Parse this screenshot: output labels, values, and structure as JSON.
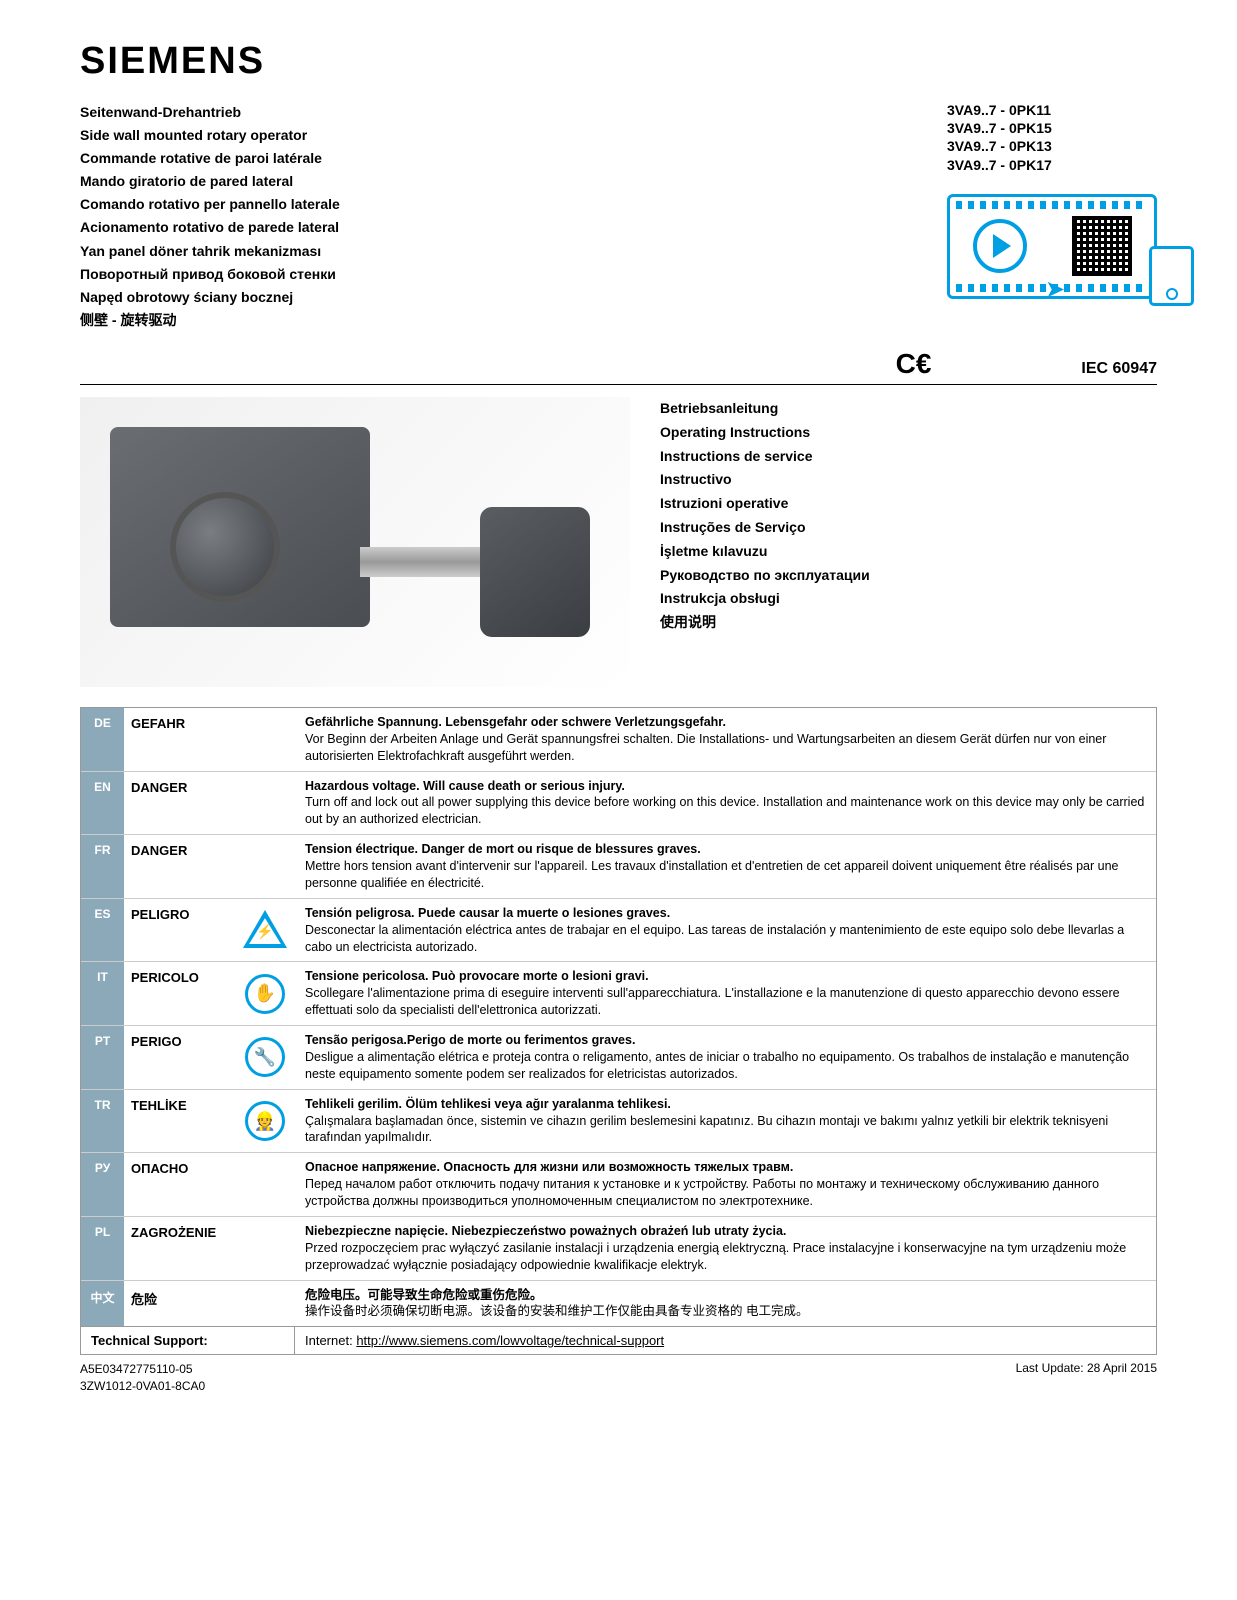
{
  "logo": "SIEMENS",
  "product_names": [
    "Seitenwand-Drehantrieb",
    "Side wall mounted rotary operator",
    "Commande rotative de paroi latérale",
    "Mando giratorio de pared lateral",
    "Comando rotativo per pannello laterale",
    "Acionamento rotativo de parede lateral",
    "Yan panel döner tahrik mekanizması",
    "Поворотный привод боковой стенки",
    "Napęd obrotowy ściany bocznej",
    "侧壁 - 旋转驱动"
  ],
  "part_numbers": [
    "3VA9..7 - 0PK11",
    "3VA9..7 - 0PK15",
    "3VA9..7 - 0PK13",
    "3VA9..7 - 0PK17"
  ],
  "ce": "C€",
  "iec": "IEC 60947",
  "instruction_labels": [
    "Betriebsanleitung",
    "Operating Instructions",
    "Instructions de service",
    "Instructivo",
    "Istruzioni operative",
    "Instruções de Serviço",
    "İşletme kılavuzu",
    "Руководство по эксплуатации",
    "Instrukcja obsługi",
    "使用说明"
  ],
  "warnings": [
    {
      "lang": "DE",
      "label": "GEFAHR",
      "heading": "Gefährliche Spannung. Lebensgefahr oder schwere Verletzungsgefahr.",
      "body": "Vor Beginn der Arbeiten Anlage und Gerät spannungsfrei schalten. Die Installations- und Wartungsarbeiten an diesem Gerät dürfen nur von einer autorisierten Elektrofachkraft ausgeführt werden."
    },
    {
      "lang": "EN",
      "label": "DANGER",
      "heading": "Hazardous voltage. Will cause death or serious injury.",
      "body": "Turn off and lock out all power supplying this device before working on this device. Installation and maintenance work on this device may only be carried out by an authorized electrician."
    },
    {
      "lang": "FR",
      "label": "DANGER",
      "heading": "Tension électrique. Danger de mort ou risque de blessures graves.",
      "body": "Mettre hors tension avant d'intervenir sur l'appareil. Les travaux d'installation et d'entretien de cet appareil doivent uniquement être réalisés par une personne qualifiée en électricité."
    },
    {
      "lang": "ES",
      "label": "PELIGRO",
      "heading": "Tensión peligrosa. Puede causar la muerte o lesiones graves.",
      "body": "Desconectar la alimentación eléctrica antes de trabajar en el equipo. Las tareas de instalación y mantenimiento de este equipo solo debe llevarlas a cabo un electricista autorizado."
    },
    {
      "lang": "IT",
      "label": "PERICOLO",
      "heading": "Tensione pericolosa. Può provocare morte o lesioni gravi.",
      "body": "Scollegare l'alimentazione prima di eseguire interventi sull'apparecchiatura. L'installazione e la manutenzione di questo apparecchio devono essere effettuati solo da specialisti dell'elettronica autorizzati."
    },
    {
      "lang": "PT",
      "label": "PERIGO",
      "heading": "Tensão perigosa.Perigo de morte ou ferimentos graves.",
      "body": "Desligue a alimentação elétrica e proteja contra o religamento, antes de iniciar o trabalho no equipamento. Os trabalhos de instalação e manutenção neste equipamento somente podem ser realizados for eletricistas autorizados."
    },
    {
      "lang": "TR",
      "label": "TEHLİKE",
      "heading": "Tehlikeli gerilim. Ölüm tehlikesi veya ağır yaralanma tehlikesi.",
      "body": "Çalışmalara başlamadan önce, sistemin ve cihazın gerilim beslemesini kapatınız. Bu cihazın montajı ve bakımı yalnız yetkili bir elektrik teknisyeni tarafından yapılmalıdır."
    },
    {
      "lang": "РУ",
      "label": "ОПАСНО",
      "heading": "Опасное напряжение. Опасность для жизни или возможность тяжелых травм.",
      "body": "Перед началом работ отключить подачу питания к установке и к устройству. Работы по монтажу и техническому обслуживанию данного устройства должны производиться уполномоченным специалистом по электротехнике."
    },
    {
      "lang": "PL",
      "label": "ZAGROŻENIE",
      "heading": "Niebezpieczne napięcie. Niebezpieczeństwo poważnych obrażeń lub utraty życia.",
      "body": "Przed rozpoczęciem prac wyłączyć zasilanie instalacji i urządzenia energią elektryczną. Prace instalacyjne i konserwacyjne na tym urządzeniu może przeprowadzać wyłącznie posiadający odpowiednie kwalifikacje elektryk."
    },
    {
      "lang": "中文",
      "label": "危险",
      "heading": "危险电压。可能导致生命危险或重伤危险。",
      "body": "操作设备时必须确保切断电源。该设备的安装和维护工作仅能由具备专业资格的 电工完成。"
    }
  ],
  "support": {
    "label": "Technical Support:",
    "prefix": "Internet: ",
    "url": "http://www.siemens.com/lowvoltage/technical-support"
  },
  "footer": {
    "doc_id_1": "A5E03472775110-05",
    "doc_id_2": "3ZW1012-0VA01-8CA0",
    "update": "Last Update: 28 April 2015"
  },
  "colors": {
    "accent": "#009fe3",
    "lang_bg": "#8ba9b8",
    "border": "#999999"
  }
}
